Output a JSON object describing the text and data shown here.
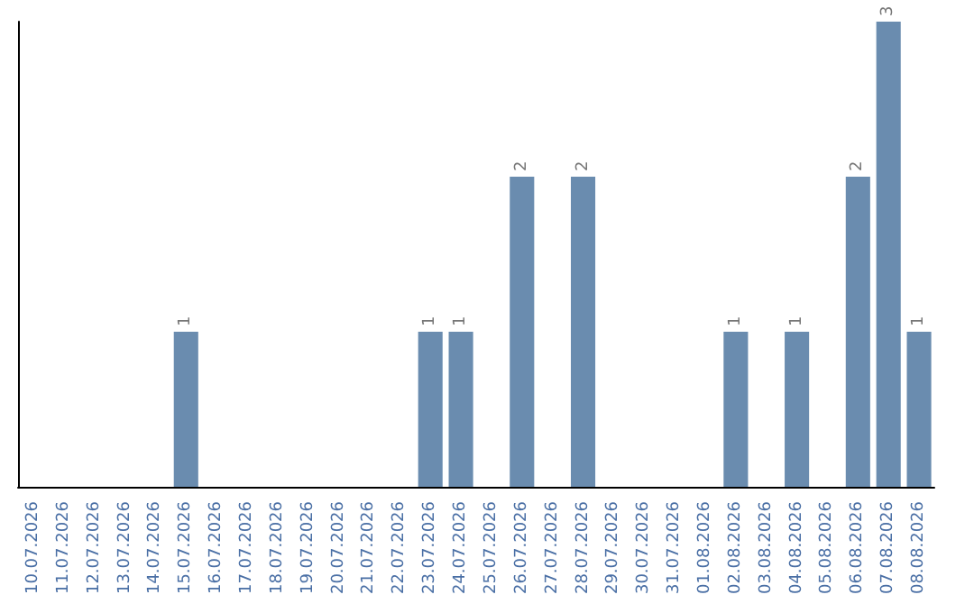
{
  "chart_data": {
    "type": "bar",
    "categories": [
      "10.07.2026",
      "11.07.2026",
      "12.07.2026",
      "13.07.2026",
      "14.07.2026",
      "15.07.2026",
      "16.07.2026",
      "17.07.2026",
      "18.07.2026",
      "19.07.2026",
      "20.07.2026",
      "21.07.2026",
      "22.07.2026",
      "23.07.2026",
      "24.07.2026",
      "25.07.2026",
      "26.07.2026",
      "27.07.2026",
      "28.07.2026",
      "29.07.2026",
      "30.07.2026",
      "31.07.2026",
      "01.08.2026",
      "02.08.2026",
      "03.08.2026",
      "04.08.2026",
      "05.08.2026",
      "06.08.2026",
      "07.08.2026",
      "08.08.2026"
    ],
    "values": [
      0,
      0,
      0,
      0,
      0,
      1,
      0,
      0,
      0,
      0,
      0,
      0,
      0,
      1,
      1,
      0,
      2,
      0,
      2,
      0,
      0,
      0,
      0,
      1,
      0,
      1,
      0,
      2,
      3,
      1
    ],
    "value_labels": [
      null,
      null,
      null,
      null,
      null,
      "1",
      null,
      null,
      null,
      null,
      null,
      null,
      null,
      "1",
      "1",
      null,
      "2",
      null,
      "2",
      null,
      null,
      null,
      null,
      "1",
      null,
      "1",
      null,
      "2",
      "3",
      "1"
    ],
    "color": "#6a8caf",
    "tick_labels": "x"
  }
}
